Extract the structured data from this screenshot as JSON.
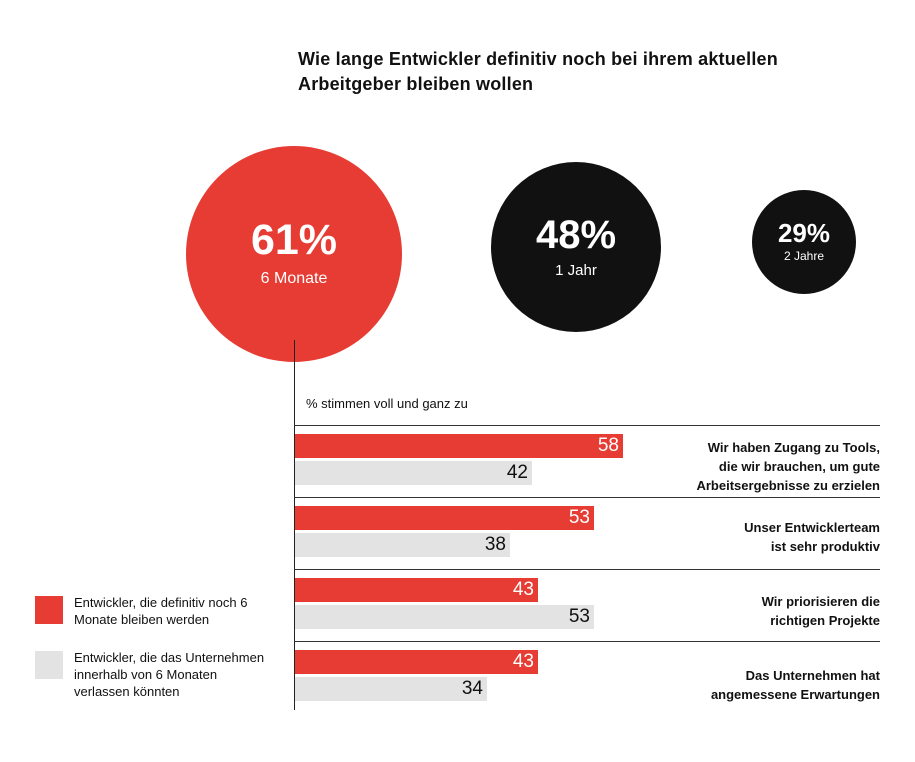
{
  "title": "Wie lange Entwickler definitiv noch bei ihrem aktuellen Arbeitgeber bleiben wollen",
  "circles": [
    {
      "pct": "61%",
      "label": "6 Monate",
      "color": "#e63c33"
    },
    {
      "pct": "48%",
      "label": "1 Jahr",
      "color": "#111111"
    },
    {
      "pct": "29%",
      "label": "2 Jahre",
      "color": "#111111"
    }
  ],
  "legend": {
    "stay": "Entwickler, die definitiv noch 6 Monate bleiben werden",
    "leave": "Entwickler, die das Unternehmen innerhalb von 6 Monaten verlassen könnten"
  },
  "colors": {
    "red": "#e63c33",
    "gray": "#e3e3e3"
  },
  "chart_data": {
    "type": "bar",
    "orientation": "horizontal",
    "xlabel": "% stimmen voll und ganz zu",
    "categories": [
      "Wir haben Zugang zu Tools, die wir brauchen, um gute Arbeitsergebnisse zu erzielen",
      "Unser Entwicklerteam ist sehr produktiv",
      "Wir priorisieren die richtigen Projekte",
      "Das Unternehmen hat angemessene Erwartungen"
    ],
    "category_lines": [
      [
        "Wir haben Zugang zu Tools,",
        "die wir brauchen, um gute",
        "Arbeitsergebnisse zu erzielen"
      ],
      [
        "Unser Entwicklerteam",
        "ist sehr produktiv"
      ],
      [
        "Wir priorisieren die",
        "richtigen Projekte"
      ],
      [
        "Das Unternehmen hat",
        "angemessene Erwartungen"
      ]
    ],
    "series": [
      {
        "name": "Entwickler, die definitiv noch 6 Monate bleiben werden",
        "values": [
          58,
          53,
          43,
          43
        ],
        "color": "#e63c33"
      },
      {
        "name": "Entwickler, die das Unternehmen innerhalb von 6 Monaten verlassen könnten",
        "values": [
          42,
          38,
          53,
          34
        ],
        "color": "#e3e3e3"
      }
    ],
    "xlim": [
      0,
      100
    ],
    "legend_position": "bottom-left"
  }
}
